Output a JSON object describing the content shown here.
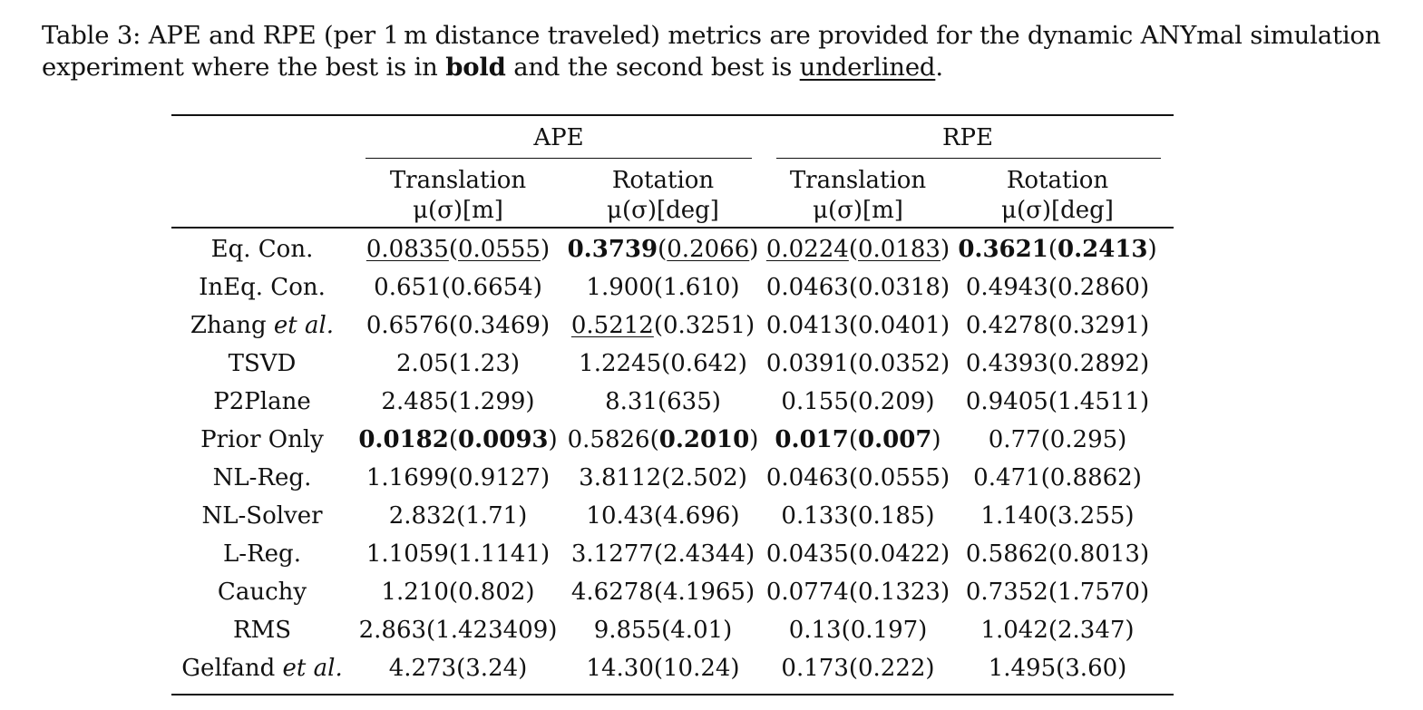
{
  "caption": {
    "label": "Table 3:",
    "text_before_bold": " APE and RPE (per 1 m distance traveled) metrics are provided for the dynamic ANYmal simulation experiment where the best is in ",
    "bold_word": "bold",
    "text_middle": " and the second best is ",
    "underline_word": "underlined",
    "text_end": "."
  },
  "header": {
    "groups": [
      "APE",
      "RPE"
    ],
    "columns": [
      {
        "name": "Translation",
        "unit": "μ(σ)[m]"
      },
      {
        "name": "Rotation",
        "unit": "μ(σ)[deg]"
      },
      {
        "name": "Translation",
        "unit": "μ(σ)[m]"
      },
      {
        "name": "Rotation",
        "unit": "μ(σ)[deg]"
      }
    ]
  },
  "rows": [
    {
      "method": "Eq. Con.",
      "cells": [
        [
          {
            "t": "0.0835",
            "s": "u"
          },
          {
            "t": "("
          },
          {
            "t": "0.0555",
            "s": "u"
          },
          {
            "t": ")"
          }
        ],
        [
          {
            "t": "0.3739",
            "s": "b"
          },
          {
            "t": "("
          },
          {
            "t": "0.2066",
            "s": "u"
          },
          {
            "t": ")"
          }
        ],
        [
          {
            "t": "0.0224",
            "s": "u"
          },
          {
            "t": "("
          },
          {
            "t": "0.0183",
            "s": "u"
          },
          {
            "t": ")"
          }
        ],
        [
          {
            "t": "0.3621",
            "s": "b"
          },
          {
            "t": "("
          },
          {
            "t": "0.2413",
            "s": "b"
          },
          {
            "t": ")"
          }
        ]
      ]
    },
    {
      "method": "InEq. Con.",
      "cells": [
        [
          {
            "t": "0.651(0.6654)"
          }
        ],
        [
          {
            "t": "1.900(1.610)"
          }
        ],
        [
          {
            "t": "0.0463(0.0318)"
          }
        ],
        [
          {
            "t": "0.4943(0.2860)"
          }
        ]
      ]
    },
    {
      "method": "Zhang",
      "method_italic": "et al.",
      "cells": [
        [
          {
            "t": "0.6576(0.3469)"
          }
        ],
        [
          {
            "t": "0.5212",
            "s": "u"
          },
          {
            "t": "(0.3251)"
          }
        ],
        [
          {
            "t": "0.0413(0.0401)"
          }
        ],
        [
          {
            "t": "0.4278(0.3291)"
          }
        ]
      ]
    },
    {
      "method": "TSVD",
      "cells": [
        [
          {
            "t": "2.05(1.23)"
          }
        ],
        [
          {
            "t": "1.2245(0.642)"
          }
        ],
        [
          {
            "t": "0.0391(0.0352)"
          }
        ],
        [
          {
            "t": "0.4393(0.2892)"
          }
        ]
      ]
    },
    {
      "method": "P2Plane",
      "cells": [
        [
          {
            "t": "2.485(1.299)"
          }
        ],
        [
          {
            "t": "8.31(635)"
          }
        ],
        [
          {
            "t": "0.155(0.209)"
          }
        ],
        [
          {
            "t": "0.9405(1.4511)"
          }
        ]
      ]
    },
    {
      "method": "Prior Only",
      "cells": [
        [
          {
            "t": "0.0182",
            "s": "b"
          },
          {
            "t": "("
          },
          {
            "t": "0.0093",
            "s": "b"
          },
          {
            "t": ")"
          }
        ],
        [
          {
            "t": "0.5826("
          },
          {
            "t": "0.2010",
            "s": "b"
          },
          {
            "t": ")"
          }
        ],
        [
          {
            "t": "0.017",
            "s": "b"
          },
          {
            "t": "("
          },
          {
            "t": "0.007",
            "s": "b"
          },
          {
            "t": ")"
          }
        ],
        [
          {
            "t": "0.77(0.295)"
          }
        ]
      ]
    },
    {
      "method": "NL-Reg.",
      "cells": [
        [
          {
            "t": "1.1699(0.9127)"
          }
        ],
        [
          {
            "t": "3.8112(2.502)"
          }
        ],
        [
          {
            "t": "0.0463(0.0555)"
          }
        ],
        [
          {
            "t": "0.471(0.8862)"
          }
        ]
      ]
    },
    {
      "method": "NL-Solver",
      "cells": [
        [
          {
            "t": "2.832(1.71)"
          }
        ],
        [
          {
            "t": "10.43(4.696)"
          }
        ],
        [
          {
            "t": "0.133(0.185)"
          }
        ],
        [
          {
            "t": "1.140(3.255)"
          }
        ]
      ]
    },
    {
      "method": "L-Reg.",
      "cells": [
        [
          {
            "t": "1.1059(1.1141)"
          }
        ],
        [
          {
            "t": "3.1277(2.4344)"
          }
        ],
        [
          {
            "t": "0.0435(0.0422)"
          }
        ],
        [
          {
            "t": "0.5862(0.8013)"
          }
        ]
      ]
    },
    {
      "method": "Cauchy",
      "cells": [
        [
          {
            "t": "1.210(0.802)"
          }
        ],
        [
          {
            "t": "4.6278(4.1965)"
          }
        ],
        [
          {
            "t": "0.0774(0.1323)"
          }
        ],
        [
          {
            "t": "0.7352(1.7570)"
          }
        ]
      ]
    },
    {
      "method": "RMS",
      "cells": [
        [
          {
            "t": "2.863(1.423409)"
          }
        ],
        [
          {
            "t": "9.855(4.01)"
          }
        ],
        [
          {
            "t": "0.13(0.197)"
          }
        ],
        [
          {
            "t": "1.042(2.347)"
          }
        ]
      ]
    },
    {
      "method": "Gelfand",
      "method_italic": "et al.",
      "cells": [
        [
          {
            "t": "4.273(3.24)"
          }
        ],
        [
          {
            "t": "14.30(10.24)"
          }
        ],
        [
          {
            "t": "0.173(0.222)"
          }
        ],
        [
          {
            "t": "1.495(3.60)"
          }
        ]
      ]
    }
  ]
}
